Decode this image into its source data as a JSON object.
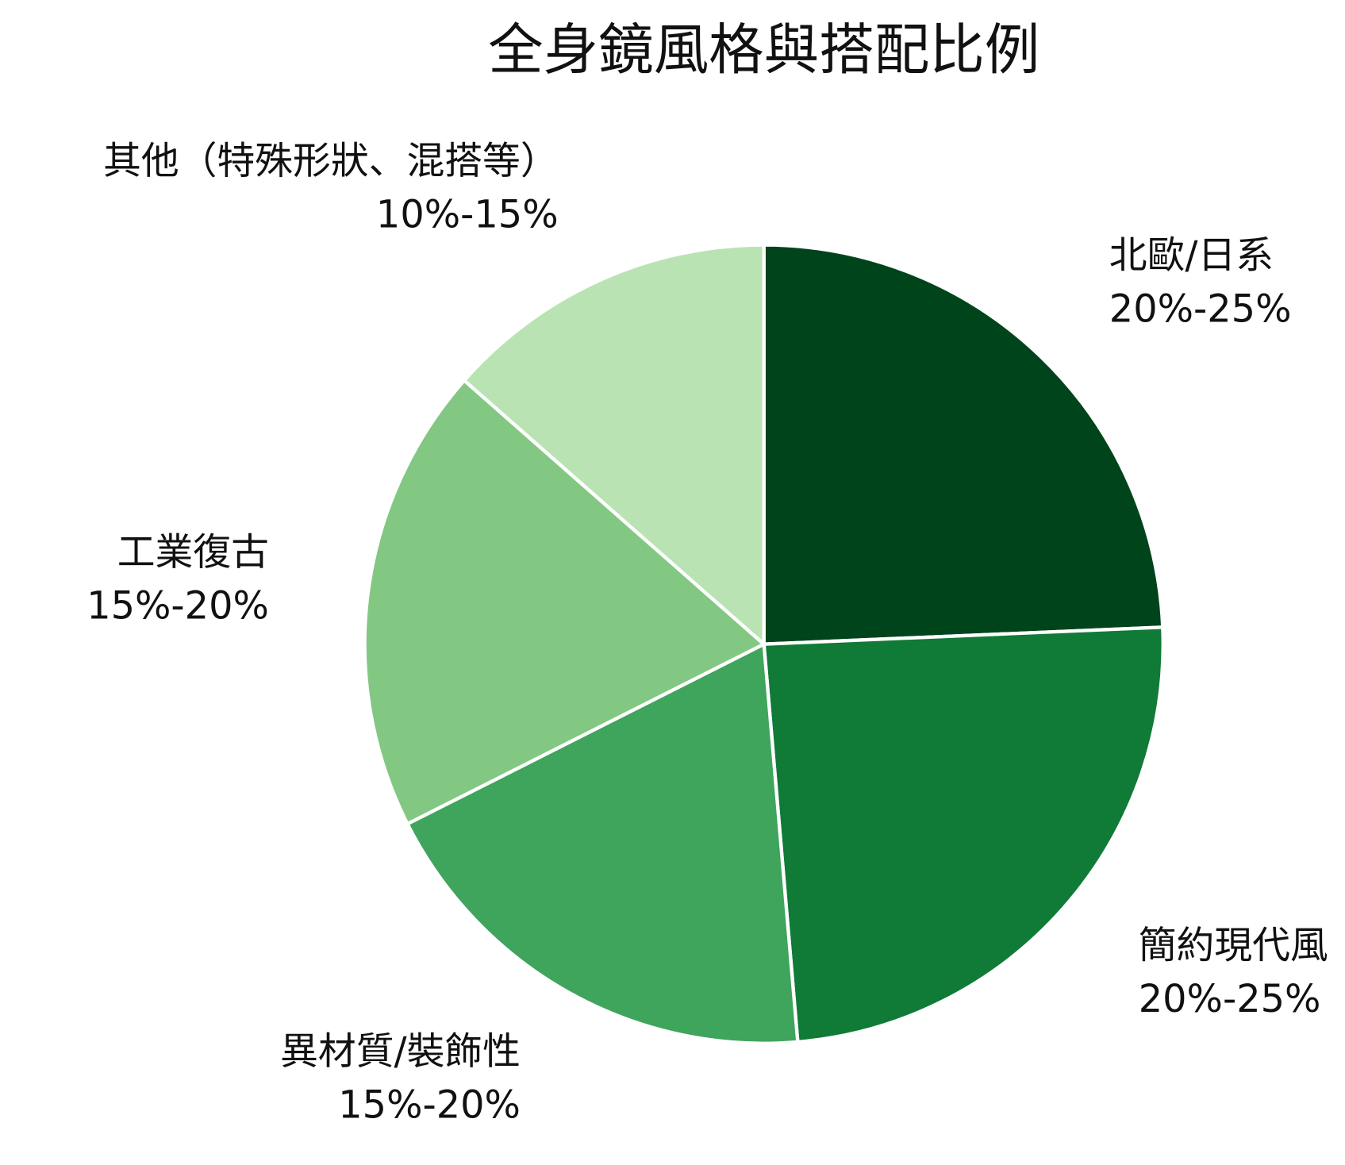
{
  "chart_data": {
    "type": "pie",
    "title": "全身鏡風格與搭配比例",
    "categories": [
      "北歐/日系",
      "簡約現代風",
      "異材質/裝飾性",
      "工業復古",
      "其他（特殊形狀、混搭等）"
    ],
    "values": [
      22.5,
      22.5,
      17.5,
      17.5,
      12.5
    ],
    "value_labels": [
      "20%-25%",
      "20%-25%",
      "15%-20%",
      "15%-20%",
      "10%-15%"
    ],
    "colors": [
      "#00441b",
      "#107a37",
      "#3fa45c",
      "#82c883",
      "#b9e3b3"
    ]
  }
}
